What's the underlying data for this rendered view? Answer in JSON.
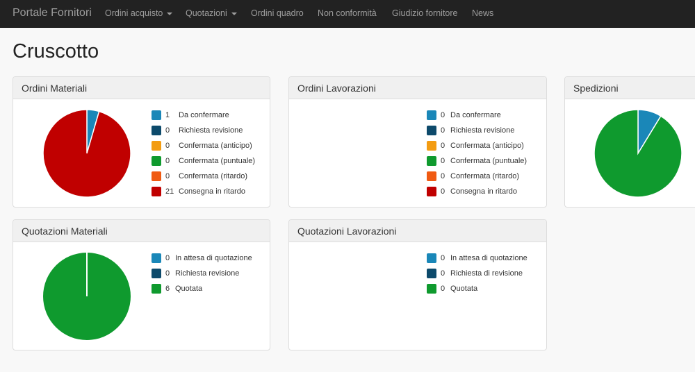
{
  "navbar": {
    "brand": "Portale Fornitori",
    "items": [
      {
        "label": "Ordini acquisto",
        "dropdown": true
      },
      {
        "label": "Quotazioni",
        "dropdown": true
      },
      {
        "label": "Ordini quadro",
        "dropdown": false
      },
      {
        "label": "Non conformità",
        "dropdown": false
      },
      {
        "label": "Giudizio fornitore",
        "dropdown": false
      },
      {
        "label": "News",
        "dropdown": false
      }
    ]
  },
  "page": {
    "title": "Cruscotto"
  },
  "colors": {
    "da_confermare": "#1a87b8",
    "richiesta_revisione": "#0d4a6b",
    "anticipo": "#f39c12",
    "puntuale": "#0f9a2e",
    "ritardo": "#f05a12",
    "consegna_ritardo": "#c00000"
  },
  "panels": {
    "ordini_materiali": {
      "title": "Ordini Materiali",
      "legend": [
        {
          "count": "1",
          "label": "Da confermare",
          "color": "#1a87b8"
        },
        {
          "count": "0",
          "label": "Richiesta revisione",
          "color": "#0d4a6b"
        },
        {
          "count": "0",
          "label": "Confermata (anticipo)",
          "color": "#f39c12"
        },
        {
          "count": "0",
          "label": "Confermata (puntuale)",
          "color": "#0f9a2e"
        },
        {
          "count": "0",
          "label": "Confermata (ritardo)",
          "color": "#f05a12"
        },
        {
          "count": "21",
          "label": "Consegna in ritardo",
          "color": "#c00000"
        }
      ]
    },
    "ordini_lavorazioni": {
      "title": "Ordini Lavorazioni",
      "legend": [
        {
          "count": "0",
          "label": "Da confermare",
          "color": "#1a87b8"
        },
        {
          "count": "0",
          "label": "Richiesta revisione",
          "color": "#0d4a6b"
        },
        {
          "count": "0",
          "label": "Confermata (anticipo)",
          "color": "#f39c12"
        },
        {
          "count": "0",
          "label": "Confermata (puntuale)",
          "color": "#0f9a2e"
        },
        {
          "count": "0",
          "label": "Confermata (ritardo)",
          "color": "#f05a12"
        },
        {
          "count": "0",
          "label": "Consegna in ritardo",
          "color": "#c00000"
        }
      ]
    },
    "spedizioni": {
      "title": "Spedizioni",
      "pie_slices": [
        {
          "value": 1,
          "color": "#1a87b8"
        },
        {
          "value": 10,
          "color": "#0f9a2e"
        }
      ]
    },
    "quotazioni_materiali": {
      "title": "Quotazioni Materiali",
      "legend": [
        {
          "count": "0",
          "label": "In attesa di quotazione",
          "color": "#1a87b8"
        },
        {
          "count": "0",
          "label": "Richiesta revisione",
          "color": "#0d4a6b"
        },
        {
          "count": "6",
          "label": "Quotata",
          "color": "#0f9a2e"
        }
      ]
    },
    "quotazioni_lavorazioni": {
      "title": "Quotazioni Lavorazioni",
      "legend": [
        {
          "count": "0",
          "label": "In attesa di quotazione",
          "color": "#1a87b8"
        },
        {
          "count": "0",
          "label": "Richiesta di revisione",
          "color": "#0d4a6b"
        },
        {
          "count": "0",
          "label": "Quotata",
          "color": "#0f9a2e"
        }
      ]
    }
  }
}
